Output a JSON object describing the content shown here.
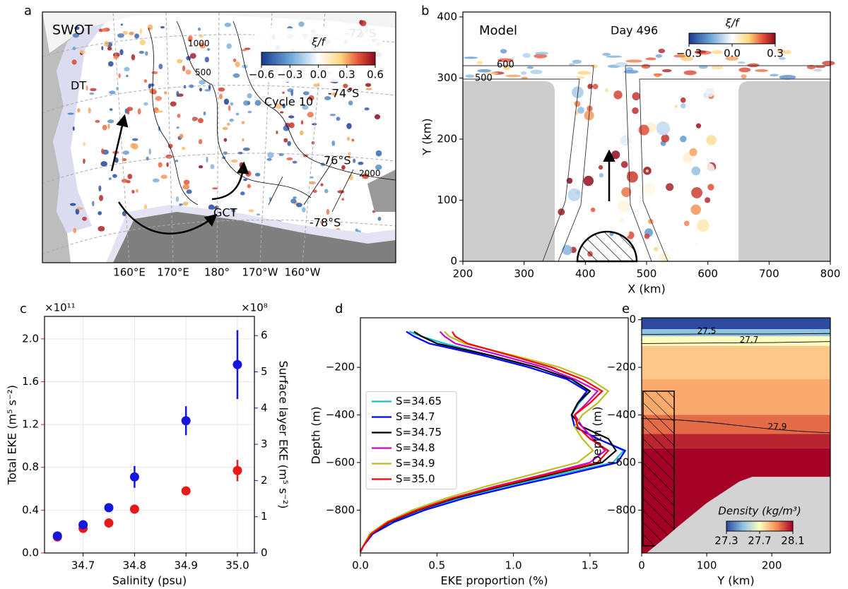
{
  "chart_data": [
    {
      "type": "map",
      "panel": "a",
      "title": "SWOT",
      "annotations": [
        "-72°S",
        "1000",
        "500",
        "DT",
        "Cycle 10",
        "-74°S",
        "76°S",
        "2000",
        "GCT",
        "-78°S"
      ],
      "lon_labels": [
        "160°E",
        "170°E",
        "180°",
        "170°W",
        "160°W"
      ],
      "colorbar": {
        "label": "ξ/f",
        "lim": [
          -0.6,
          0.6
        ],
        "ticks": [
          {
            "value": -0.6,
            "label": "−0.6"
          },
          {
            "value": -0.3,
            "label": "−0.3"
          },
          {
            "value": 0,
            "label": "0.0"
          },
          0.3,
          0.6
        ]
      }
    },
    {
      "type": "field",
      "panel": "b",
      "annotations": [
        "Model",
        "Day 496",
        "600",
        "500"
      ],
      "xlabel": "X (km)",
      "ylabel": "Y (km)",
      "xlim": [
        200,
        800
      ],
      "xticks": [
        200,
        300,
        400,
        500,
        600,
        700,
        800
      ],
      "ylim": [
        0,
        408
      ],
      "yticks": [
        0,
        100,
        200,
        300,
        400
      ],
      "colorbar": {
        "label": "ξ/f",
        "lim": [
          -0.3,
          0.3
        ],
        "ticks": [
          {
            "value": -0.3,
            "label": "−0.3"
          },
          {
            "value": 0,
            "label": "0.0"
          },
          0.3
        ]
      }
    },
    {
      "type": "scatter",
      "panel": "c",
      "xlabel": "Salinity (psu)",
      "ylabel": "Total EKE (m⁵ s⁻²)",
      "y2label": "Surface layer EKE (m⁵ s⁻²)",
      "yscale_label": "×10¹¹",
      "y2scale_label": "×10⁸",
      "x": [
        34.65,
        34.7,
        34.75,
        34.8,
        34.9,
        35
      ],
      "series": [
        {
          "color": "#e8191b",
          "values": [
            0.15,
            0.23,
            0.28,
            0.41,
            0.58,
            0.77
          ],
          "errors": [
            0.02,
            0.03,
            0.02,
            0.02,
            0.04,
            0.1
          ]
        },
        {
          "color": "#1515e0",
          "axis": "y2",
          "values": [
            0.47,
            0.78,
            1.25,
            2.1,
            3.65,
            5.2
          ],
          "errors": [
            0.05,
            0.1,
            0.08,
            0.3,
            0.4,
            0.95
          ]
        }
      ],
      "xlim": [
        34.625,
        35.033
      ],
      "xticks": [
        34.7,
        34.8,
        34.9,
        {
          "value": 35,
          "label": "35.0"
        }
      ],
      "ylim": [
        0,
        2.21
      ],
      "yticks": [
        {
          "value": 0,
          "label": "0.0"
        },
        0.4,
        0.8,
        1.2,
        1.6,
        {
          "value": 2,
          "label": "2.0"
        }
      ],
      "y2lim": [
        0,
        6.53
      ],
      "y2ticks": [
        0,
        1,
        2,
        3,
        4,
        5,
        6
      ],
      "grid": true
    },
    {
      "type": "line",
      "panel": "d",
      "xlabel": "EKE proportion (%)",
      "ylabel": "Depth (m)",
      "y": [
        -50,
        -70,
        -100,
        -150,
        -200,
        -250,
        -300,
        -350,
        -400,
        -450,
        -500,
        -550,
        -600,
        -650,
        -700,
        -750,
        -800,
        -850,
        -900,
        -950,
        -975
      ],
      "series": [
        {
          "name": "S=34.65",
          "color": "#17becf",
          "values": [
            0.32,
            0.4,
            0.55,
            0.85,
            1.1,
            1.35,
            1.5,
            1.43,
            1.38,
            1.4,
            1.55,
            1.72,
            1.65,
            1.3,
            0.95,
            0.65,
            0.4,
            0.2,
            0.08,
            0.02,
            0
          ]
        },
        {
          "name": "S=34.7",
          "color": "#0000ff",
          "values": [
            0.3,
            0.35,
            0.45,
            0.8,
            1.1,
            1.35,
            1.48,
            1.42,
            1.38,
            1.4,
            1.55,
            1.73,
            1.68,
            1.35,
            1.0,
            0.68,
            0.42,
            0.22,
            0.08,
            0.02,
            0
          ]
        },
        {
          "name": "S=34.75",
          "color": "#000000",
          "values": [
            0.35,
            0.4,
            0.5,
            0.85,
            1.15,
            1.38,
            1.5,
            1.42,
            1.38,
            1.45,
            1.62,
            1.67,
            1.58,
            1.25,
            0.92,
            0.62,
            0.38,
            0.19,
            0.07,
            0.02,
            0
          ]
        },
        {
          "name": "S=34.8",
          "color": "#cc00cc",
          "values": [
            0.52,
            0.55,
            0.62,
            0.92,
            1.2,
            1.4,
            1.55,
            1.48,
            1.4,
            1.45,
            1.52,
            1.6,
            1.5,
            1.2,
            0.88,
            0.6,
            0.36,
            0.18,
            0.07,
            0.02,
            0
          ]
        },
        {
          "name": "S=34.9",
          "color": "#bcbd22",
          "values": [
            0.55,
            0.58,
            0.68,
            1.0,
            1.3,
            1.5,
            1.62,
            1.55,
            1.45,
            1.4,
            1.45,
            1.52,
            1.42,
            1.12,
            0.82,
            0.56,
            0.34,
            0.17,
            0.06,
            0.02,
            0
          ]
        },
        {
          "name": "S=35.0",
          "color": "#ff0000",
          "values": [
            0.6,
            0.62,
            0.7,
            0.98,
            1.25,
            1.45,
            1.58,
            1.5,
            1.4,
            1.42,
            1.5,
            1.62,
            1.55,
            1.22,
            0.9,
            0.6,
            0.37,
            0.18,
            0.07,
            0.02,
            0
          ]
        }
      ],
      "xlim": [
        0,
        1.75
      ],
      "xticks": [
        {
          "value": 0,
          "label": "0.0"
        },
        0.5,
        {
          "value": 1,
          "label": "1.0"
        },
        1.5
      ],
      "ylim": [
        -980,
        8
      ],
      "yticks": [
        {
          "value": -200,
          "label": "−200"
        },
        {
          "value": -400,
          "label": "−400"
        },
        {
          "value": -600,
          "label": "−600"
        },
        {
          "value": -800,
          "label": "−800"
        }
      ],
      "legend": "center left"
    },
    {
      "type": "heatmap",
      "panel": "e",
      "xlabel": "Y (km)",
      "ylabel": "Depth (m)",
      "profile_depth": [
        8,
        -40,
        -70,
        -110,
        -250,
        -400,
        -480,
        -540
      ],
      "profile_density": [
        27.3,
        27.5,
        27.7,
        27.8,
        27.85,
        27.95,
        28.05,
        28.1
      ],
      "contours": [
        {
          "level": 27.5,
          "y": [
            0,
            100,
            200,
            290
          ],
          "depth": [
            -62,
            -60,
            -60,
            -58
          ]
        },
        {
          "level": 27.7,
          "y": [
            0,
            100,
            200,
            290
          ],
          "depth": [
            -100,
            -98,
            -96,
            -92
          ]
        },
        {
          "level": 27.9,
          "y": [
            0,
            50,
            100,
            150,
            200,
            250,
            290
          ],
          "depth": [
            -415,
            -420,
            -430,
            -445,
            -460,
            -470,
            -475
          ]
        }
      ],
      "seafloor": {
        "y": [
          8,
          30,
          57,
          100,
          150,
          170,
          290
        ],
        "depth": [
          -979,
          -930,
          -866,
          -770,
          -680,
          -660,
          -660
        ]
      },
      "xlim": [
        0,
        290
      ],
      "xticks": [
        0,
        100,
        200
      ],
      "ylim": [
        -980,
        8
      ],
      "yticks": [
        0,
        {
          "value": -200,
          "label": "−200"
        },
        {
          "value": -400,
          "label": "−400"
        },
        {
          "value": -600,
          "label": "−600"
        },
        {
          "value": -800,
          "label": "−800"
        }
      ],
      "colorbar": {
        "label": "Density (kg/m³)",
        "lim": [
          27.3,
          28.1
        ],
        "ticks": [
          27.3,
          27.7,
          28.1
        ]
      }
    }
  ]
}
